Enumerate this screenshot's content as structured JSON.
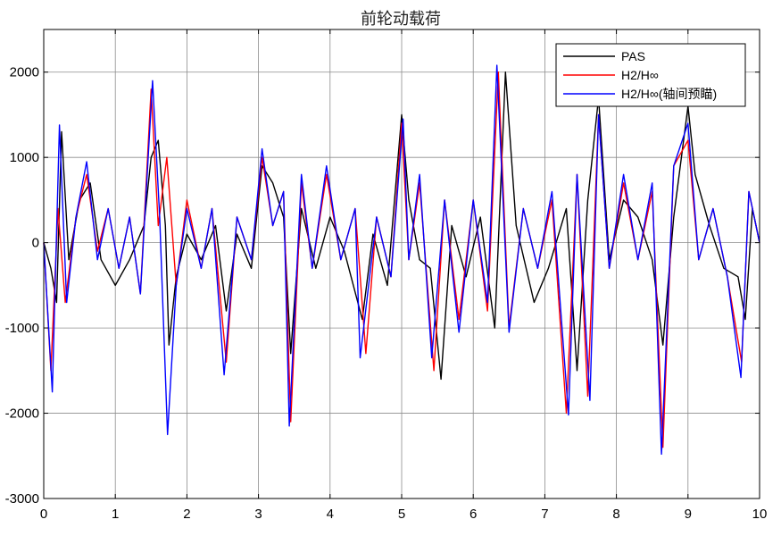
{
  "chart_data": {
    "type": "line",
    "title": "前轮动载荷",
    "xlabel": "",
    "ylabel": "",
    "xlim": [
      0,
      10
    ],
    "ylim": [
      -3000,
      2500
    ],
    "x_ticks": [
      0,
      1,
      2,
      3,
      4,
      5,
      6,
      7,
      8,
      9,
      10
    ],
    "y_ticks": [
      -3000,
      -2000,
      -1000,
      0,
      1000,
      2000
    ],
    "grid": true,
    "legend_position": "top-right",
    "series": [
      {
        "name": "PAS",
        "color": "#000000",
        "x": [
          0,
          0.1,
          0.18,
          0.25,
          0.35,
          0.5,
          0.65,
          0.8,
          1.0,
          1.2,
          1.4,
          1.5,
          1.6,
          1.7,
          1.75,
          1.85,
          2.0,
          2.2,
          2.4,
          2.55,
          2.7,
          2.9,
          3.05,
          3.2,
          3.35,
          3.45,
          3.6,
          3.8,
          4.0,
          4.2,
          4.45,
          4.6,
          4.8,
          5.0,
          5.1,
          5.25,
          5.4,
          5.55,
          5.7,
          5.9,
          6.1,
          6.3,
          6.45,
          6.6,
          6.85,
          7.05,
          7.3,
          7.45,
          7.6,
          7.75,
          7.9,
          8.1,
          8.3,
          8.5,
          8.65,
          8.8,
          9.0,
          9.1,
          9.3,
          9.5,
          9.7,
          9.8,
          9.9,
          10
        ],
        "y": [
          0,
          -300,
          -700,
          1300,
          -200,
          500,
          700,
          -200,
          -500,
          -200,
          200,
          1000,
          1200,
          200,
          -1200,
          -400,
          100,
          -200,
          200,
          -800,
          100,
          -300,
          900,
          700,
          300,
          -1300,
          400,
          -300,
          300,
          -100,
          -900,
          100,
          -500,
          1500,
          500,
          -200,
          -300,
          -1600,
          200,
          -400,
          300,
          -1000,
          2000,
          200,
          -700,
          -300,
          400,
          -1500,
          500,
          1700,
          -200,
          500,
          300,
          -200,
          -1200,
          300,
          1600,
          800,
          200,
          -300,
          -400,
          -900,
          400,
          0
        ]
      },
      {
        "name": "H2/H∞",
        "color": "#ff0000",
        "x": [
          0,
          0.1,
          0.2,
          0.3,
          0.45,
          0.6,
          0.75,
          0.9,
          1.05,
          1.2,
          1.35,
          1.5,
          1.6,
          1.72,
          1.85,
          2.0,
          2.2,
          2.35,
          2.55,
          2.7,
          2.9,
          3.05,
          3.2,
          3.35,
          3.45,
          3.6,
          3.75,
          3.95,
          4.15,
          4.35,
          4.5,
          4.65,
          4.85,
          5.0,
          5.1,
          5.25,
          5.45,
          5.6,
          5.8,
          6.0,
          6.2,
          6.35,
          6.5,
          6.7,
          6.9,
          7.1,
          7.3,
          7.45,
          7.6,
          7.75,
          7.9,
          8.1,
          8.3,
          8.5,
          8.65,
          8.8,
          9.0,
          9.15,
          9.35,
          9.55,
          9.75,
          9.85,
          10
        ],
        "y": [
          0,
          -1500,
          400,
          -700,
          300,
          800,
          -100,
          400,
          -300,
          300,
          -600,
          1800,
          200,
          1000,
          -500,
          500,
          -300,
          400,
          -1400,
          300,
          -200,
          1000,
          200,
          600,
          -2100,
          700,
          -300,
          800,
          -200,
          400,
          -1300,
          300,
          -400,
          1400,
          -200,
          700,
          -1500,
          500,
          -900,
          500,
          -800,
          2000,
          -1000,
          400,
          -300,
          500,
          -2000,
          800,
          -1800,
          1500,
          -300,
          700,
          -200,
          600,
          -2400,
          900,
          1200,
          -200,
          400,
          -400,
          -1400,
          600,
          0
        ]
      },
      {
        "name": "H2/H∞(轴间预瞄)",
        "color": "#0000ff",
        "x": [
          0,
          0.12,
          0.22,
          0.32,
          0.45,
          0.6,
          0.75,
          0.9,
          1.05,
          1.2,
          1.35,
          1.52,
          1.62,
          1.73,
          1.85,
          2.0,
          2.2,
          2.35,
          2.52,
          2.7,
          2.9,
          3.05,
          3.2,
          3.35,
          3.43,
          3.6,
          3.75,
          3.95,
          4.15,
          4.35,
          4.42,
          4.65,
          4.85,
          5.02,
          5.1,
          5.25,
          5.42,
          5.6,
          5.8,
          6.0,
          6.2,
          6.33,
          6.5,
          6.7,
          6.9,
          7.1,
          7.33,
          7.45,
          7.63,
          7.75,
          7.9,
          8.1,
          8.3,
          8.5,
          8.63,
          8.8,
          9.0,
          9.15,
          9.35,
          9.55,
          9.74,
          9.85,
          10
        ],
        "y": [
          0,
          -1750,
          1380,
          -700,
          300,
          950,
          -200,
          400,
          -300,
          300,
          -600,
          1900,
          300,
          -2250,
          -500,
          400,
          -300,
          400,
          -1550,
          300,
          -200,
          1100,
          200,
          600,
          -2150,
          800,
          -300,
          900,
          -200,
          400,
          -1350,
          300,
          -400,
          1450,
          -200,
          800,
          -1350,
          500,
          -1050,
          500,
          -700,
          2080,
          -1050,
          400,
          -300,
          600,
          -2020,
          800,
          -1850,
          1500,
          -300,
          800,
          -200,
          700,
          -2480,
          900,
          1400,
          -200,
          400,
          -400,
          -1580,
          600,
          0
        ]
      }
    ]
  }
}
